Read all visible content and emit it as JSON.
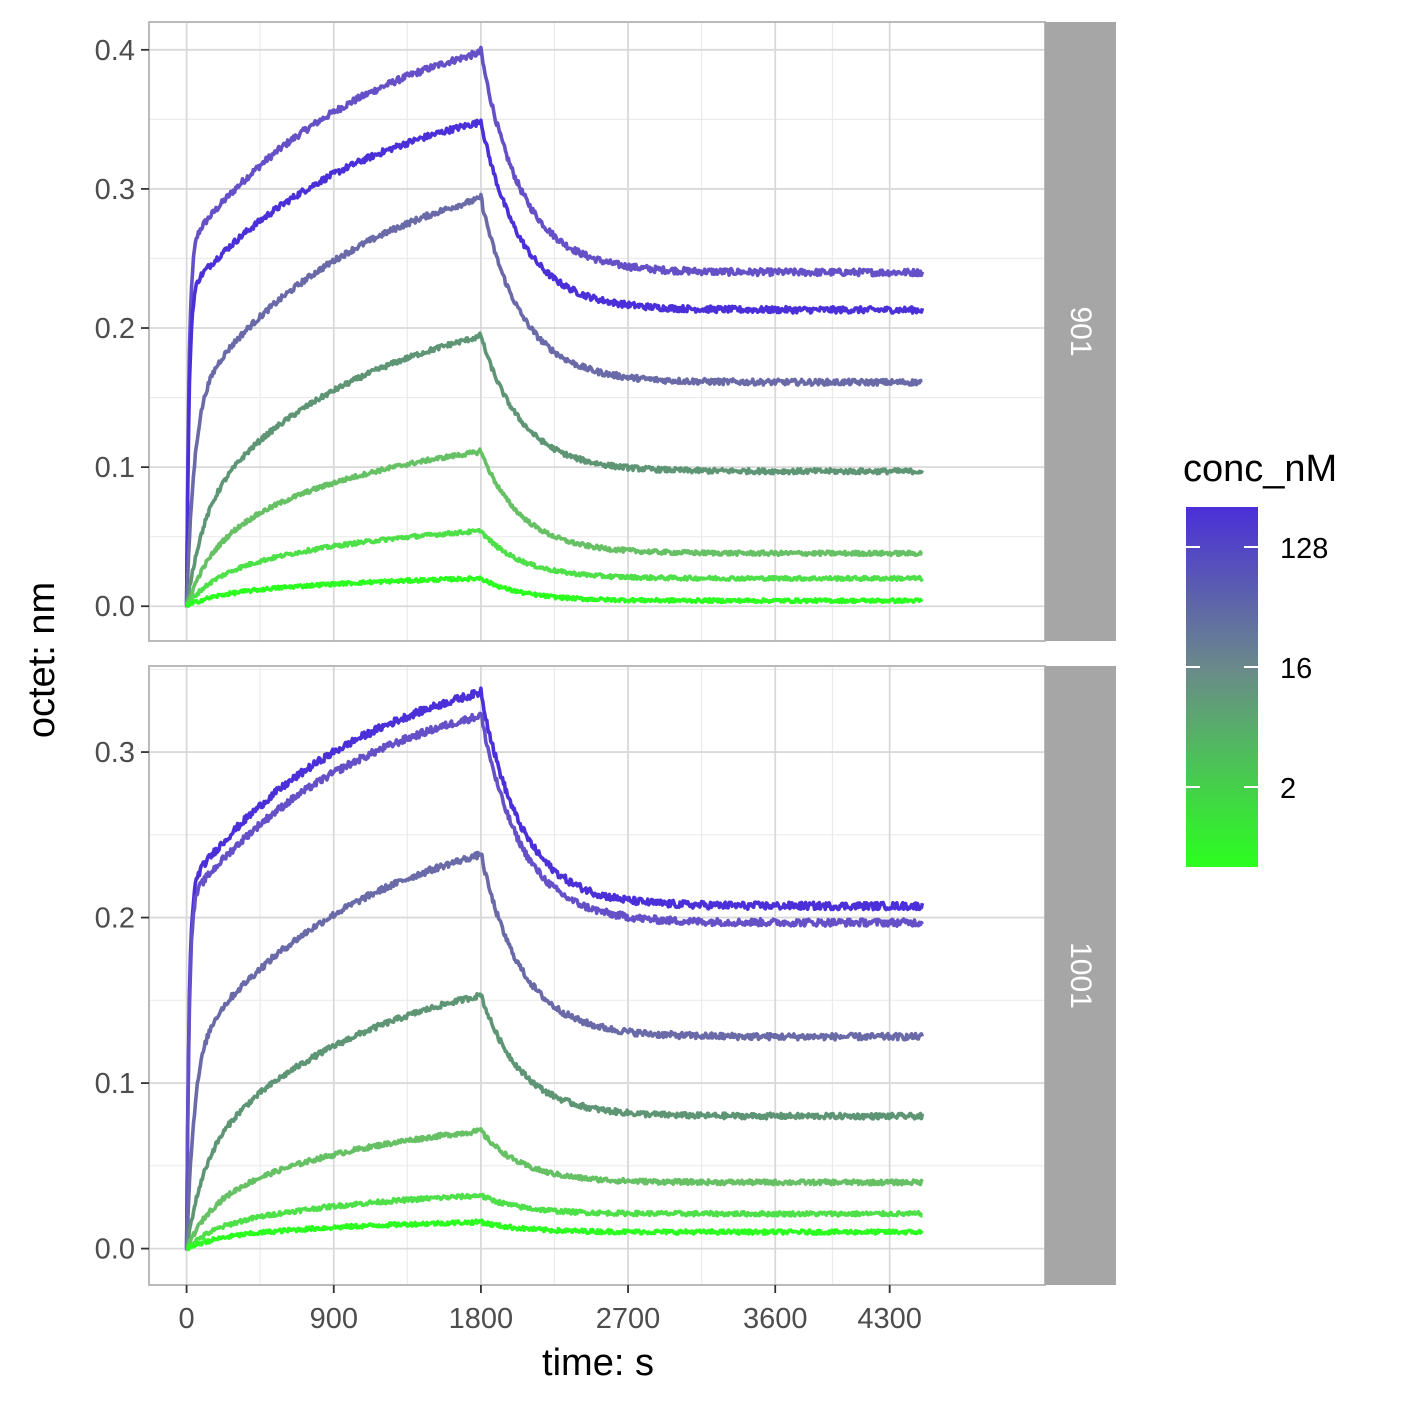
{
  "chart_data": {
    "type": "line",
    "xlabel": "time: s",
    "ylabel": "octet: nm",
    "x_ticks": [
      0,
      900,
      1800,
      2700,
      3600,
      4300
    ],
    "association_end_s": 1800,
    "end_s": 4500,
    "legend": {
      "title": "conc_nM",
      "placement": "right",
      "scale": "log2",
      "labels": [
        128,
        16,
        2
      ],
      "range": [
        0.5,
        256
      ],
      "color_high": "#4b2fd8",
      "color_mid": "#6a8a8a",
      "color_low": "#2bff1f"
    },
    "panels": [
      {
        "strip_label": "901",
        "ylim": [
          -0.025,
          0.42
        ],
        "y_ticks": [
          "0.0",
          "0.1",
          "0.2",
          "0.3",
          "0.4"
        ],
        "series": [
          {
            "conc": 128,
            "color": "#6650c8",
            "plateau": 0.398,
            "residual": 0.24
          },
          {
            "conc": 256,
            "color": "#4b2fd8",
            "plateau": 0.348,
            "residual": 0.213
          },
          {
            "conc": 32,
            "color": "#6a6aa8",
            "plateau": 0.293,
            "residual": 0.161
          },
          {
            "conc": 8,
            "color": "#5e9575",
            "plateau": 0.194,
            "residual": 0.097
          },
          {
            "conc": 2,
            "color": "#66c064",
            "plateau": 0.111,
            "residual": 0.038
          },
          {
            "conc": 1,
            "color": "#4ee048",
            "plateau": 0.054,
            "residual": 0.02
          },
          {
            "conc": 0.5,
            "color": "#2bff1f",
            "plateau": 0.02,
            "residual": 0.004
          }
        ]
      },
      {
        "strip_label": "1001",
        "ylim": [
          -0.022,
          0.352
        ],
        "y_ticks": [
          "0.0",
          "0.1",
          "0.2",
          "0.3"
        ],
        "series": [
          {
            "conc": 256,
            "color": "#4b2fd8",
            "plateau": 0.336,
            "residual": 0.207
          },
          {
            "conc": 128,
            "color": "#6650c8",
            "plateau": 0.322,
            "residual": 0.197
          },
          {
            "conc": 32,
            "color": "#6a6aa8",
            "plateau": 0.238,
            "residual": 0.128
          },
          {
            "conc": 8,
            "color": "#5e9575",
            "plateau": 0.153,
            "residual": 0.08
          },
          {
            "conc": 2,
            "color": "#66c064",
            "plateau": 0.071,
            "residual": 0.04
          },
          {
            "conc": 1,
            "color": "#4ee048",
            "plateau": 0.032,
            "residual": 0.021
          },
          {
            "conc": 0.5,
            "color": "#2bff1f",
            "plateau": 0.016,
            "residual": 0.01
          }
        ]
      }
    ]
  }
}
